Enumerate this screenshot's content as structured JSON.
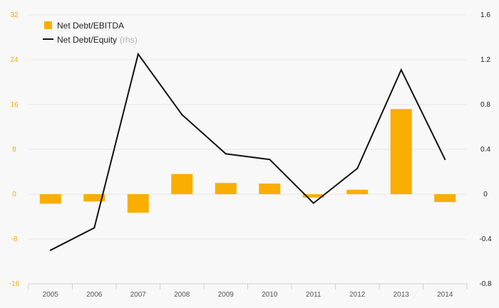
{
  "chart_data": {
    "type": "bar",
    "categories": [
      "2005",
      "2006",
      "2007",
      "2008",
      "2009",
      "2010",
      "2011",
      "2012",
      "2013",
      "2014"
    ],
    "series": [
      {
        "name": "Net Debt/EBITDA",
        "type": "bar",
        "axis": "left",
        "color": "#f9ae00",
        "values": [
          -1.7,
          -1.3,
          -3.3,
          3.6,
          2.0,
          1.9,
          -0.6,
          0.8,
          15.2,
          -1.4
        ]
      },
      {
        "name": "Net Debt/Equity",
        "name_suffix": "(rhs)",
        "type": "line",
        "axis": "right",
        "color": "#111111",
        "values": [
          -0.5,
          -0.3,
          1.25,
          0.71,
          0.36,
          0.31,
          -0.08,
          0.23,
          1.11,
          0.31
        ]
      }
    ],
    "y_left": {
      "ylim": [
        -16,
        32
      ],
      "ticks": [
        "32",
        "24",
        "16",
        "8",
        "0",
        "-8",
        "-16"
      ],
      "color": "#f5a800"
    },
    "y_right": {
      "ylim": [
        -0.8,
        1.6
      ],
      "ticks": [
        "1.6",
        "1.2",
        "0.8",
        "0.4",
        "0",
        "-0.4",
        "-0.8"
      ]
    },
    "grid": true,
    "legend": "top-left",
    "title": "",
    "xlabel": "",
    "ylabel": ""
  }
}
